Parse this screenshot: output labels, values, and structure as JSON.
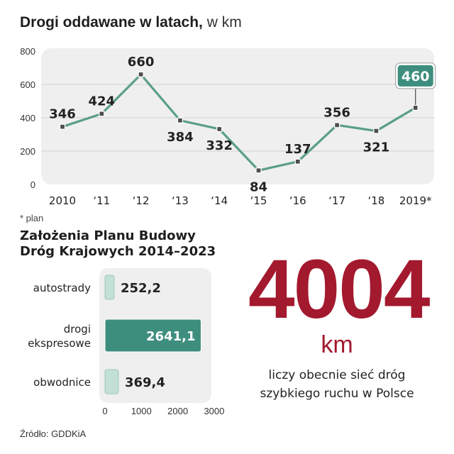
{
  "line_section": {
    "title": "Drogi oddawane w latach,",
    "unit_label": "w km",
    "footnote": "* plan"
  },
  "bar_section": {
    "title_line1": "Założenia Planu Budowy",
    "title_line2": "Dróg Krajowych 2014–2023"
  },
  "highlight": {
    "number": "4004",
    "unit": "km",
    "desc_line1": "liczy obecnie sieć dróg",
    "desc_line2": "szybkiego ruchu w Polsce"
  },
  "source": "Źródło: GDDKiA",
  "colors": {
    "line": "#5a9e8a",
    "highlight_box": "#3e8e7e",
    "big_number": "#a3192e",
    "bar_dark": "#3e8e7e",
    "bar_light": "#c2e0d5",
    "panel_bg": "#efefef"
  },
  "chart_data": [
    {
      "type": "line",
      "categories": [
        "2010",
        "‘11",
        "‘12",
        "‘13",
        "‘14",
        "‘15",
        "‘16",
        "‘17",
        "‘18",
        "2019*"
      ],
      "values": [
        346,
        424,
        660,
        384,
        332,
        84,
        137,
        356,
        321,
        460
      ],
      "value_labels": [
        "346",
        "424",
        "660",
        "384",
        "332",
        "84",
        "137",
        "356",
        "321",
        "460"
      ],
      "label_positions": [
        "above",
        "above",
        "above",
        "below",
        "below",
        "below",
        "above",
        "above",
        "below",
        "box"
      ],
      "ylim": [
        0,
        800
      ],
      "yticks": [
        0,
        200,
        400,
        600,
        800
      ],
      "ytick_labels": [
        "0",
        "200",
        "400",
        "600",
        "800"
      ],
      "grid": true
    },
    {
      "type": "bar",
      "orientation": "horizontal",
      "categories": [
        [
          "autostrady"
        ],
        [
          "drogi",
          "ekspresowe"
        ],
        [
          "obwodnice"
        ]
      ],
      "values": [
        252.2,
        2641.1,
        369.4
      ],
      "value_labels": [
        "252,2",
        "2641,1",
        "369,4"
      ],
      "highlight_index": 1,
      "xlim": [
        0,
        3000
      ],
      "xticks": [
        0,
        1000,
        2000,
        3000
      ],
      "xtick_labels": [
        "0",
        "1000",
        "2000",
        "3000"
      ]
    }
  ]
}
